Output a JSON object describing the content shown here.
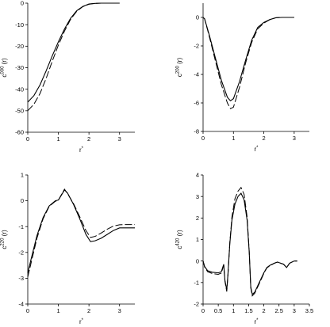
{
  "chart_data": [
    {
      "type": "line",
      "ylabel": {
        "base": "c",
        "sup": "000",
        "suffix": " (r)"
      },
      "xlabel": {
        "base": "r",
        "sup": "*"
      },
      "xlim": [
        0,
        3.5
      ],
      "ylim": [
        -60,
        0
      ],
      "xticks": [
        0,
        1,
        2,
        3
      ],
      "yticks": [
        -60,
        -50,
        -40,
        -30,
        -20,
        -10,
        0
      ],
      "series": [
        {
          "style": "solid",
          "x": [
            0,
            0.2,
            0.4,
            0.6,
            0.8,
            1.0,
            1.2,
            1.4,
            1.6,
            1.8,
            2.0,
            2.2,
            2.4,
            2.6,
            3.0
          ],
          "y": [
            -46,
            -43,
            -38,
            -31.5,
            -24.5,
            -18,
            -12,
            -7,
            -3.5,
            -1.5,
            -0.4,
            -0.1,
            0,
            0,
            0
          ]
        },
        {
          "style": "dashed",
          "x": [
            0,
            0.2,
            0.4,
            0.6,
            0.8,
            1.0,
            1.2,
            1.4,
            1.6,
            1.8,
            2.0,
            2.2,
            2.4,
            2.6,
            3.0
          ],
          "y": [
            -50,
            -47,
            -42,
            -35,
            -27,
            -19.5,
            -13,
            -7.5,
            -3.8,
            -1.6,
            -0.5,
            -0.1,
            0,
            0,
            0
          ]
        }
      ]
    },
    {
      "type": "line",
      "ylabel": {
        "base": "c",
        "sup": "200",
        "suffix": " (r)"
      },
      "xlabel": {
        "base": "r",
        "sup": "*"
      },
      "xlim": [
        0,
        3.5
      ],
      "ylim": [
        -8,
        1
      ],
      "xticks": [
        0,
        1,
        2,
        3
      ],
      "yticks": [
        -8,
        -6,
        -4,
        -2,
        0
      ],
      "series": [
        {
          "style": "solid",
          "x": [
            0,
            0.05,
            0.2,
            0.4,
            0.6,
            0.8,
            0.9,
            1.0,
            1.2,
            1.4,
            1.6,
            1.8,
            2.0,
            2.2,
            2.4,
            2.6,
            3.0
          ],
          "y": [
            0,
            -0.1,
            -1.2,
            -2.8,
            -4.4,
            -5.6,
            -5.85,
            -5.7,
            -4.5,
            -3.0,
            -1.6,
            -0.7,
            -0.35,
            -0.15,
            -0.02,
            0,
            0
          ]
        },
        {
          "style": "dashed",
          "x": [
            0,
            0.05,
            0.2,
            0.4,
            0.6,
            0.8,
            0.9,
            1.0,
            1.2,
            1.4,
            1.6,
            1.8,
            2.0,
            2.2,
            2.4,
            2.6,
            3.0
          ],
          "y": [
            0,
            -0.1,
            -1.3,
            -3.0,
            -4.7,
            -6.0,
            -6.4,
            -6.3,
            -4.9,
            -3.2,
            -1.75,
            -0.8,
            -0.4,
            -0.15,
            -0.02,
            0,
            0
          ]
        }
      ]
    },
    {
      "type": "line",
      "ylabel": {
        "base": "c",
        "sup": "220",
        "suffix": " (r)"
      },
      "xlabel": {
        "base": "r",
        "sup": "*"
      },
      "xlim": [
        0,
        3.5
      ],
      "ylim": [
        -4,
        1
      ],
      "xticks": [
        0,
        1,
        2,
        3
      ],
      "yticks": [
        -4,
        -3,
        -2,
        -1,
        0,
        1
      ],
      "series": [
        {
          "style": "solid",
          "x": [
            0,
            0.1,
            0.3,
            0.5,
            0.7,
            0.9,
            1.0,
            1.1,
            1.2,
            1.3,
            1.5,
            1.7,
            1.9,
            2.05,
            2.2,
            2.4,
            2.6,
            2.8,
            3.0,
            3.2,
            3.5
          ],
          "y": [
            -2.8,
            -2.3,
            -1.35,
            -0.65,
            -0.2,
            0.0,
            0.03,
            0.22,
            0.42,
            0.3,
            -0.15,
            -0.7,
            -1.3,
            -1.58,
            -1.55,
            -1.45,
            -1.3,
            -1.15,
            -1.05,
            -1.05,
            -1.05
          ]
        },
        {
          "style": "dashed",
          "x": [
            0,
            0.1,
            0.3,
            0.5,
            0.7,
            0.9,
            1.0,
            1.1,
            1.2,
            1.3,
            1.5,
            1.7,
            1.9,
            2.05,
            2.2,
            2.4,
            2.6,
            2.8,
            3.0,
            3.2,
            3.5
          ],
          "y": [
            -2.95,
            -2.45,
            -1.45,
            -0.7,
            -0.22,
            -0.02,
            0.02,
            0.24,
            0.45,
            0.28,
            -0.12,
            -0.62,
            -1.15,
            -1.42,
            -1.38,
            -1.25,
            -1.1,
            -0.98,
            -0.93,
            -0.92,
            -0.92
          ]
        }
      ]
    },
    {
      "type": "line",
      "ylabel": {
        "base": "c",
        "sup": "420",
        "suffix": " (r)"
      },
      "xlabel": {
        "base": "r",
        "sup": "*"
      },
      "xlim": [
        0,
        3.5
      ],
      "ylim": [
        -2,
        4
      ],
      "xticks": [
        0,
        0.5,
        1,
        1.5,
        2,
        2.5,
        3,
        3.5
      ],
      "yticks": [
        -2,
        -1,
        0,
        1,
        2,
        3,
        4
      ],
      "series": [
        {
          "style": "solid",
          "x": [
            0,
            0.05,
            0.15,
            0.3,
            0.5,
            0.6,
            0.68,
            0.72,
            0.78,
            0.82,
            0.88,
            0.95,
            1.05,
            1.15,
            1.25,
            1.35,
            1.45,
            1.52,
            1.57,
            1.62,
            1.7,
            1.8,
            1.9,
            2.0,
            2.1,
            2.2,
            2.35,
            2.45,
            2.55,
            2.65,
            2.75,
            2.85,
            3.0,
            3.1
          ],
          "y": [
            0,
            -0.25,
            -0.45,
            -0.52,
            -0.55,
            -0.5,
            -0.15,
            -0.9,
            -1.35,
            -0.6,
            0.8,
            1.9,
            2.65,
            3.0,
            3.15,
            2.85,
            1.9,
            0.4,
            -1.2,
            -1.55,
            -1.45,
            -1.15,
            -0.85,
            -0.55,
            -0.3,
            -0.2,
            -0.1,
            -0.05,
            -0.1,
            -0.15,
            -0.3,
            -0.1,
            0.0,
            0.0
          ]
        },
        {
          "style": "dashed",
          "x": [
            0,
            0.05,
            0.15,
            0.3,
            0.5,
            0.6,
            0.68,
            0.72,
            0.78,
            0.82,
            0.88,
            0.95,
            1.05,
            1.15,
            1.25,
            1.35,
            1.45,
            1.52,
            1.57,
            1.62,
            1.7,
            1.8,
            1.9,
            2.0,
            2.1,
            2.2,
            2.35,
            2.45,
            2.55,
            2.65,
            2.75,
            2.85,
            3.0,
            3.1
          ],
          "y": [
            0,
            -0.28,
            -0.5,
            -0.58,
            -0.62,
            -0.56,
            -0.2,
            -0.95,
            -1.42,
            -0.65,
            0.85,
            2.05,
            2.9,
            3.25,
            3.42,
            3.1,
            2.05,
            0.45,
            -1.25,
            -1.62,
            -1.5,
            -1.2,
            -0.9,
            -0.58,
            -0.32,
            -0.22,
            -0.1,
            -0.05,
            -0.1,
            -0.15,
            -0.3,
            -0.1,
            0.0,
            0.0
          ]
        }
      ]
    }
  ]
}
